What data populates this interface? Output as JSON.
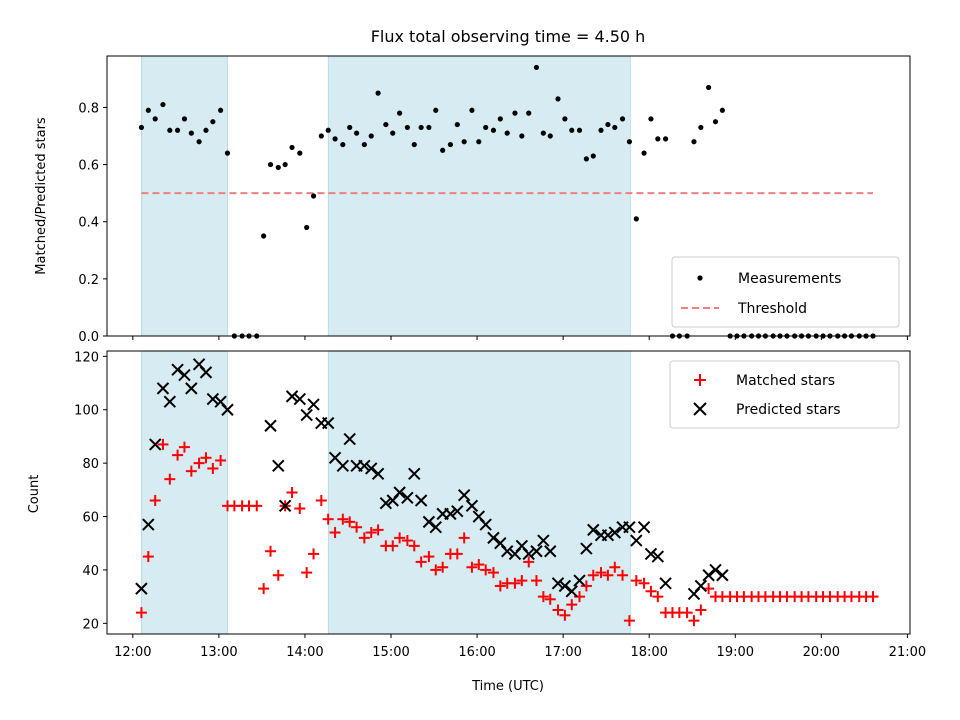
{
  "chart_data": [
    {
      "type": "scatter",
      "title": "Flux total observing time = 4.50 h",
      "ylabel": "Matched/Predicted stars",
      "xlim": [
        11.7,
        21.03
      ],
      "ylim": [
        0,
        0.98
      ],
      "y_ticks": [
        0,
        0.2,
        0.4,
        0.6,
        0.8
      ],
      "y_tick_labels": [
        "0.0",
        "0.2",
        "0.4",
        "0.6",
        "0.8"
      ],
      "legend": {
        "placement": "bottom-right",
        "entries": [
          "Measurements",
          "Threshold"
        ]
      },
      "shaded_intervals": [
        [
          12.1,
          13.1
        ],
        [
          14.27,
          17.78
        ]
      ],
      "series": [
        {
          "name": "Measurements",
          "style": "dot",
          "color": "#000000",
          "x": [
            12.1,
            12.18,
            12.26,
            12.35,
            12.43,
            12.52,
            12.6,
            12.68,
            12.77,
            12.85,
            12.93,
            13.02,
            13.1,
            13.18,
            13.27,
            13.35,
            13.44,
            13.52,
            13.6,
            13.69,
            13.77,
            13.85,
            13.94,
            14.02,
            14.1,
            14.19,
            14.27,
            14.35,
            14.44,
            14.52,
            14.6,
            14.69,
            14.77,
            14.85,
            14.94,
            15.02,
            15.1,
            15.19,
            15.27,
            15.35,
            15.44,
            15.52,
            15.6,
            15.69,
            15.77,
            15.85,
            15.94,
            16.02,
            16.1,
            16.19,
            16.27,
            16.35,
            16.44,
            16.52,
            16.6,
            16.69,
            16.77,
            16.85,
            16.94,
            17.02,
            17.1,
            17.19,
            17.27,
            17.35,
            17.44,
            17.52,
            17.6,
            17.69,
            17.77,
            17.85,
            17.94,
            18.02,
            18.1,
            18.19,
            18.27,
            18.35,
            18.44,
            18.52,
            18.6,
            18.69,
            18.77,
            18.85,
            18.94,
            19.02,
            19.1,
            19.19,
            19.27,
            19.35,
            19.44,
            19.52,
            19.6,
            19.69,
            19.77,
            19.85,
            19.94,
            20.02,
            20.1,
            20.19,
            20.27,
            20.35,
            20.44,
            20.52,
            20.6
          ],
          "y": [
            0.73,
            0.79,
            0.76,
            0.81,
            0.72,
            0.72,
            0.76,
            0.71,
            0.68,
            0.72,
            0.75,
            0.79,
            0.64,
            0,
            0,
            0,
            0,
            0.35,
            0.6,
            0.59,
            0.6,
            0.66,
            0.64,
            0.38,
            0.49,
            0.7,
            0.72,
            0.69,
            0.67,
            0.73,
            0.71,
            0.67,
            0.7,
            0.85,
            0.74,
            0.71,
            0.78,
            0.73,
            0.67,
            0.73,
            0.73,
            0.79,
            0.65,
            0.67,
            0.74,
            0.68,
            0.79,
            0.68,
            0.73,
            0.72,
            0.76,
            0.71,
            0.78,
            0.7,
            0.78,
            0.94,
            0.71,
            0.7,
            0.83,
            0.76,
            0.72,
            0.72,
            0.62,
            0.63,
            0.72,
            0.74,
            0.73,
            0.76,
            0.68,
            0.41,
            0.64,
            0.76,
            0.69,
            0.69,
            0,
            0,
            0,
            0.68,
            0.73,
            0.87,
            0.75,
            0.79,
            0,
            0,
            0,
            0,
            0,
            0,
            0,
            0,
            0,
            0,
            0,
            0,
            0,
            0,
            0,
            0,
            0,
            0,
            0,
            0,
            0
          ]
        },
        {
          "name": "Threshold",
          "style": "dashed-line",
          "color": "#f08080",
          "x": [
            12.1,
            20.6
          ],
          "y": [
            0.5,
            0.5
          ]
        }
      ]
    },
    {
      "type": "scatter",
      "xlabel": "Time (UTC)",
      "ylabel": "Count",
      "xlim": [
        11.7,
        21.03
      ],
      "ylim": [
        16,
        122
      ],
      "x_ticks": [
        12,
        13,
        14,
        15,
        16,
        17,
        18,
        19,
        20,
        21
      ],
      "x_tick_labels": [
        "12:00",
        "13:00",
        "14:00",
        "15:00",
        "16:00",
        "17:00",
        "18:00",
        "19:00",
        "20:00",
        "21:00"
      ],
      "y_ticks": [
        20,
        40,
        60,
        80,
        100,
        120
      ],
      "y_tick_labels": [
        "20",
        "40",
        "60",
        "80",
        "100",
        "120"
      ],
      "legend": {
        "placement": "top-right",
        "entries": [
          "Matched stars",
          "Predicted stars"
        ]
      },
      "shaded_intervals": [
        [
          12.1,
          13.1
        ],
        [
          14.27,
          17.78
        ]
      ],
      "series": [
        {
          "name": "Matched stars",
          "style": "plus",
          "color": "#ff0000",
          "x": [
            12.1,
            12.18,
            12.26,
            12.35,
            12.43,
            12.52,
            12.6,
            12.68,
            12.77,
            12.85,
            12.93,
            13.02,
            13.1,
            13.18,
            13.27,
            13.35,
            13.44,
            13.52,
            13.6,
            13.69,
            13.77,
            13.85,
            13.94,
            14.02,
            14.1,
            14.19,
            14.27,
            14.35,
            14.44,
            14.52,
            14.6,
            14.69,
            14.77,
            14.85,
            14.94,
            15.02,
            15.1,
            15.19,
            15.27,
            15.35,
            15.44,
            15.52,
            15.6,
            15.69,
            15.77,
            15.85,
            15.94,
            16.02,
            16.1,
            16.19,
            16.27,
            16.35,
            16.44,
            16.52,
            16.6,
            16.69,
            16.77,
            16.85,
            16.94,
            17.02,
            17.1,
            17.19,
            17.27,
            17.35,
            17.44,
            17.52,
            17.6,
            17.69,
            17.77,
            17.85,
            17.94,
            18.02,
            18.1,
            18.19,
            18.27,
            18.35,
            18.44,
            18.52,
            18.6,
            18.69,
            18.77,
            18.85,
            18.94,
            19.02,
            19.1,
            19.19,
            19.27,
            19.35,
            19.44,
            19.52,
            19.6,
            19.69,
            19.77,
            19.85,
            19.94,
            20.02,
            20.1,
            20.19,
            20.27,
            20.35,
            20.44,
            20.52,
            20.6
          ],
          "y": [
            24,
            45,
            66,
            87,
            74,
            83,
            86,
            77,
            80,
            82,
            78,
            81,
            64,
            64,
            64,
            64,
            64,
            33,
            47,
            38,
            64,
            69,
            63,
            39,
            46,
            66,
            59,
            54,
            59,
            58,
            56,
            52,
            54,
            55,
            49,
            49,
            52,
            51,
            49,
            43,
            45,
            40,
            41,
            46,
            46,
            52,
            41,
            42,
            40,
            39,
            34,
            35,
            35,
            36,
            43,
            36,
            30,
            29,
            25,
            23,
            27,
            30,
            34,
            38,
            39,
            38,
            41,
            38,
            21,
            36,
            35,
            32,
            30,
            24,
            24,
            24,
            24,
            21,
            25,
            33,
            30,
            30,
            30,
            30,
            30,
            30,
            30,
            30,
            30,
            30,
            30,
            30,
            30,
            30,
            30,
            30,
            30,
            30,
            30,
            30,
            30,
            30,
            30
          ]
        },
        {
          "name": "Predicted stars",
          "style": "cross",
          "color": "#000000",
          "x": [
            12.1,
            12.18,
            12.26,
            12.35,
            12.43,
            12.52,
            12.6,
            12.68,
            12.77,
            12.85,
            12.93,
            13.02,
            13.1,
            13.6,
            13.69,
            13.77,
            13.85,
            13.94,
            14.02,
            14.1,
            14.19,
            14.27,
            14.35,
            14.44,
            14.52,
            14.6,
            14.69,
            14.77,
            14.85,
            14.94,
            15.02,
            15.1,
            15.19,
            15.27,
            15.35,
            15.44,
            15.52,
            15.6,
            15.69,
            15.77,
            15.85,
            15.94,
            16.02,
            16.1,
            16.19,
            16.27,
            16.35,
            16.44,
            16.52,
            16.6,
            16.69,
            16.77,
            16.85,
            16.94,
            17.02,
            17.1,
            17.19,
            17.27,
            17.35,
            17.44,
            17.52,
            17.6,
            17.69,
            17.77,
            17.85,
            17.94,
            18.02,
            18.1,
            18.19,
            18.52,
            18.6,
            18.69,
            18.77,
            18.85
          ],
          "y": [
            33,
            57,
            87,
            108,
            103,
            115,
            113,
            108,
            117,
            114,
            104,
            103,
            100,
            94,
            79,
            64,
            105,
            104,
            98,
            102,
            95,
            95,
            82,
            79,
            89,
            79,
            79,
            78,
            76,
            65,
            66,
            69,
            67,
            76,
            66,
            58,
            56,
            61,
            61,
            62,
            68,
            64,
            60,
            57,
            52,
            50,
            47,
            46,
            49,
            46,
            47,
            51,
            47,
            35,
            34,
            32,
            36,
            48,
            55,
            53,
            53,
            54,
            56,
            56,
            51,
            56,
            46,
            45,
            35,
            31,
            34,
            38,
            40,
            38
          ]
        }
      ]
    }
  ]
}
